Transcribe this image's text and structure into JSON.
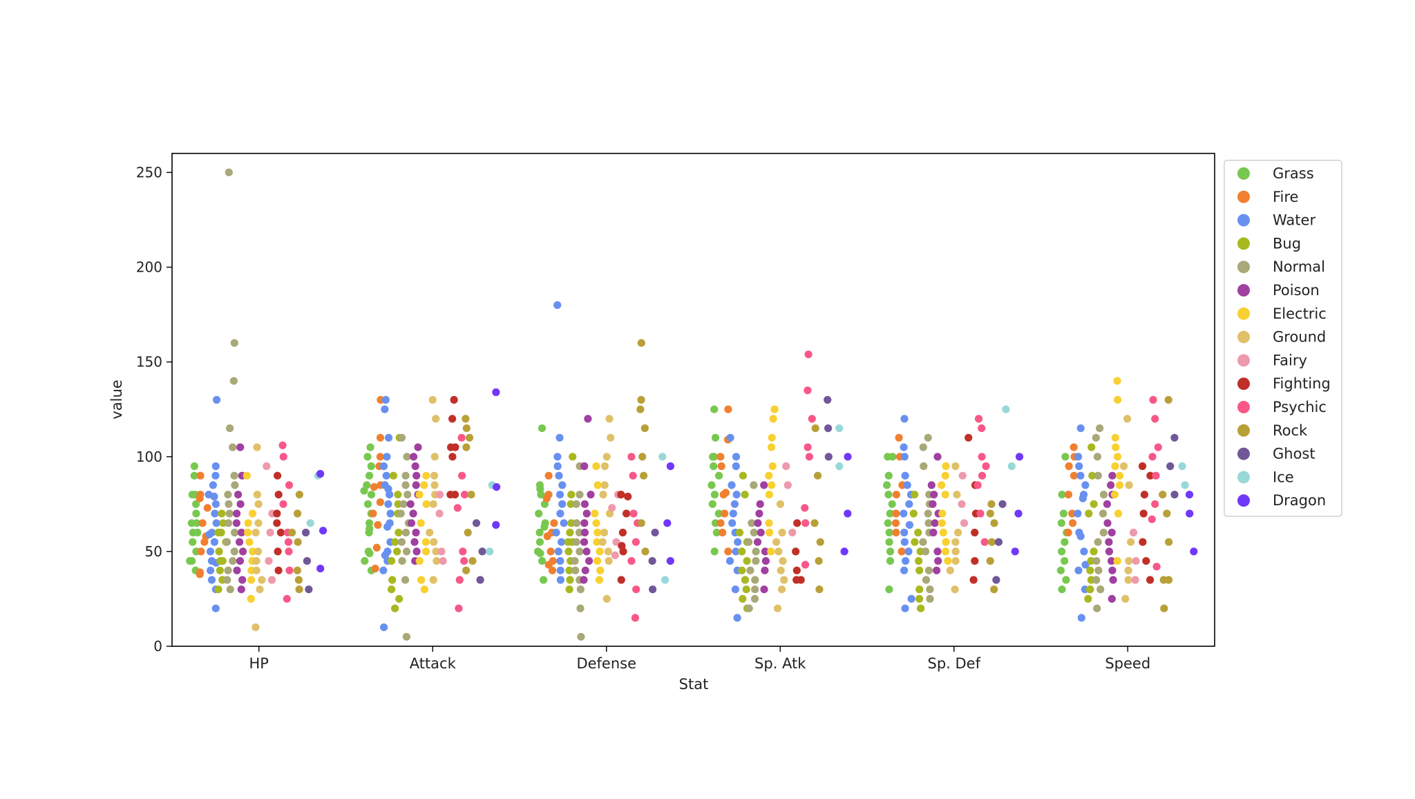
{
  "chart_data": {
    "type": "scatter",
    "subtype": "categorical strip plot with jitter",
    "title": "",
    "xlabel": "Stat",
    "ylabel": "value",
    "categories": [
      "HP",
      "Attack",
      "Defense",
      "Sp. Atk",
      "Sp. Def",
      "Speed"
    ],
    "ylim": [
      0,
      260
    ],
    "yticks": [
      0,
      50,
      100,
      150,
      200,
      250
    ],
    "grid": false,
    "legend_position": "outside-right-top",
    "series": [
      {
        "name": "Grass",
        "color": "#78c850",
        "values": {
          "HP": [
            45,
            60,
            80,
            65,
            75,
            90,
            55,
            70,
            50,
            95,
            40,
            80,
            65,
            45,
            60
          ],
          "Attack": [
            49,
            62,
            82,
            65,
            100,
            80,
            105,
            45,
            75,
            40,
            90,
            60,
            50,
            70,
            95,
            85
          ],
          "Defense": [
            49,
            63,
            83,
            70,
            85,
            80,
            55,
            65,
            115,
            35,
            75,
            50,
            60,
            45
          ],
          "Sp. Atk": [
            65,
            80,
            100,
            70,
            85,
            125,
            100,
            60,
            90,
            110,
            75,
            50,
            95
          ],
          "Sp. Def": [
            65,
            80,
            100,
            60,
            70,
            85,
            100,
            90,
            75,
            45,
            50,
            55,
            30
          ],
          "Speed": [
            45,
            60,
            80,
            55,
            40,
            70,
            50,
            65,
            30,
            100,
            35
          ]
        }
      },
      {
        "name": "Fire",
        "color": "#f08030",
        "values": {
          "HP": [
            39,
            58,
            78,
            65,
            90,
            38,
            73,
            50,
            55,
            80
          ],
          "Attack": [
            52,
            64,
            84,
            130,
            100,
            110,
            76,
            85,
            95,
            41,
            70
          ],
          "Defense": [
            43,
            58,
            78,
            60,
            80,
            45,
            50,
            40,
            90,
            65
          ],
          "Sp. Atk": [
            60,
            80,
            109,
            95,
            70,
            100,
            50,
            81,
            125,
            65
          ],
          "Sp. Def": [
            50,
            65,
            85,
            110,
            100,
            80,
            60,
            70
          ],
          "Speed": [
            65,
            80,
            100,
            105,
            90,
            70,
            60,
            95
          ]
        }
      },
      {
        "name": "Water",
        "color": "#6890f0",
        "values": {
          "HP": [
            44,
            59,
            79,
            30,
            80,
            95,
            90,
            130,
            65,
            70,
            60,
            40,
            55,
            20,
            45,
            50,
            35,
            75,
            85
          ],
          "Attack": [
            48,
            63,
            83,
            85,
            75,
            130,
            95,
            125,
            55,
            70,
            45,
            80,
            65,
            10,
            50,
            40,
            90,
            100,
            110
          ],
          "Defense": [
            65,
            80,
            100,
            110,
            180,
            55,
            70,
            35,
            45,
            85,
            90,
            75,
            60,
            50,
            40,
            95
          ],
          "Sp. Atk": [
            50,
            65,
            85,
            60,
            70,
            110,
            100,
            80,
            40,
            15,
            30,
            55,
            45,
            95,
            75
          ],
          "Sp. Def": [
            64,
            80,
            105,
            55,
            40,
            120,
            60,
            70,
            50,
            25,
            20,
            100,
            90,
            75,
            45,
            85
          ],
          "Speed": [
            43,
            58,
            78,
            80,
            90,
            115,
            70,
            60,
            50,
            85,
            40,
            30,
            15,
            100,
            95
          ]
        }
      },
      {
        "name": "Bug",
        "color": "#a8b820",
        "values": {
          "HP": [
            45,
            50,
            60,
            40,
            65,
            35,
            70,
            55,
            30,
            60,
            45
          ],
          "Attack": [
            30,
            45,
            20,
            35,
            90,
            25,
            80,
            70,
            55,
            60,
            110,
            75,
            50
          ],
          "Defense": [
            35,
            55,
            50,
            30,
            40,
            60,
            80,
            75,
            45,
            65,
            100,
            55
          ],
          "Sp. Atk": [
            20,
            25,
            90,
            45,
            55,
            40,
            60,
            50,
            30,
            80,
            35
          ],
          "Sp. Def": [
            20,
            25,
            80,
            55,
            40,
            70,
            50,
            30,
            60,
            45
          ],
          "Speed": [
            45,
            30,
            75,
            35,
            50,
            70,
            90,
            40,
            30,
            25,
            105
          ]
        }
      },
      {
        "name": "Normal",
        "color": "#a8a878",
        "values": {
          "HP": [
            250,
            160,
            140,
            115,
            105,
            90,
            80,
            70,
            60,
            55,
            40,
            30,
            35,
            45,
            50,
            65,
            75,
            85
          ],
          "Attack": [
            5,
            45,
            55,
            60,
            70,
            80,
            90,
            100,
            110,
            75,
            50,
            65,
            35,
            85
          ],
          "Defense": [
            5,
            20,
            30,
            35,
            40,
            45,
            50,
            55,
            60,
            65,
            75,
            80,
            95
          ],
          "Sp. Atk": [
            35,
            40,
            45,
            55,
            60,
            65,
            25,
            85,
            30,
            20,
            50
          ],
          "Sp. Def": [
            35,
            40,
            50,
            60,
            65,
            70,
            75,
            80,
            95,
            110,
            105,
            55,
            30,
            25
          ],
          "Speed": [
            35,
            45,
            55,
            60,
            70,
            80,
            90,
            100,
            110,
            115,
            30,
            20,
            40
          ]
        }
      },
      {
        "name": "Poison",
        "color": "#a040a0",
        "values": {
          "HP": [
            105,
            80,
            70,
            65,
            40,
            60,
            45,
            50,
            35,
            75,
            90,
            55,
            30
          ],
          "Attack": [
            105,
            90,
            80,
            60,
            45,
            50,
            65,
            75,
            85,
            95,
            100,
            55,
            70
          ],
          "Defense": [
            120,
            75,
            95,
            65,
            70,
            50,
            40,
            45,
            60,
            55,
            35,
            80
          ],
          "Sp. Atk": [
            40,
            65,
            85,
            75,
            60,
            50,
            30,
            55,
            45,
            70
          ],
          "Sp. Def": [
            40,
            65,
            85,
            75,
            100,
            50,
            60,
            70,
            45,
            80
          ],
          "Speed": [
            55,
            65,
            75,
            80,
            90,
            85,
            50,
            40,
            25,
            60,
            45,
            35
          ]
        }
      },
      {
        "name": "Electric",
        "color": "#f8d030",
        "values": {
          "HP": [
            35,
            60,
            40,
            65,
            50,
            90,
            70,
            25,
            45,
            55
          ],
          "Attack": [
            55,
            90,
            45,
            35,
            65,
            80,
            85,
            50,
            30,
            75
          ],
          "Defense": [
            40,
            50,
            70,
            85,
            55,
            65,
            60,
            35,
            45,
            95
          ],
          "Sp. Atk": [
            50,
            90,
            95,
            120,
            80,
            65,
            110,
            105,
            125,
            85,
            60
          ],
          "Sp. Def": [
            50,
            90,
            55,
            80,
            65,
            70,
            85,
            60,
            95,
            45
          ],
          "Speed": [
            90,
            100,
            140,
            130,
            110,
            105,
            80,
            70,
            45,
            95,
            85
          ]
        }
      },
      {
        "name": "Ground",
        "color": "#e0c068",
        "values": {
          "HP": [
            50,
            75,
            10,
            35,
            105,
            80,
            60,
            40,
            65,
            45,
            30
          ],
          "Attack": [
            75,
            100,
            80,
            130,
            120,
            90,
            60,
            55,
            85,
            50,
            35,
            45
          ],
          "Defense": [
            85,
            110,
            55,
            80,
            95,
            120,
            70,
            50,
            25,
            60,
            100,
            45
          ],
          "Sp. Atk": [
            20,
            45,
            30,
            40,
            35,
            50,
            55,
            60,
            75
          ],
          "Sp. Def": [
            30,
            45,
            55,
            40,
            50,
            60,
            80,
            95
          ],
          "Speed": [
            40,
            25,
            45,
            35,
            120,
            95,
            55,
            85
          ]
        }
      },
      {
        "name": "Fairy",
        "color": "#ee99ac",
        "values": {
          "HP": [
            70,
            95,
            60,
            35,
            45
          ],
          "Attack": [
            45,
            70,
            80,
            50
          ],
          "Defense": [
            48,
            73,
            55,
            80
          ],
          "Sp. Atk": [
            60,
            95,
            85
          ],
          "Sp. Def": [
            65,
            90,
            75
          ],
          "Speed": [
            35,
            60,
            45
          ]
        }
      },
      {
        "name": "Fighting",
        "color": "#c03028",
        "values": {
          "HP": [
            70,
            80,
            90,
            50,
            65,
            40,
            60
          ],
          "Attack": [
            80,
            105,
            130,
            105,
            100,
            80,
            120
          ],
          "Defense": [
            35,
            50,
            80,
            79,
            53,
            60,
            70
          ],
          "Sp. Atk": [
            35,
            40,
            50,
            35,
            65
          ],
          "Sp. Def": [
            35,
            60,
            110,
            85,
            70,
            45
          ],
          "Speed": [
            35,
            55,
            70,
            95,
            90,
            45,
            80
          ]
        }
      },
      {
        "name": "Psychic",
        "color": "#f85888",
        "values": {
          "HP": [
            25,
            40,
            55,
            85,
            106,
            100,
            60,
            50,
            75
          ],
          "Attack": [
            20,
            35,
            50,
            90,
            110,
            73,
            45,
            80
          ],
          "Defense": [
            15,
            30,
            45,
            65,
            100,
            90,
            55,
            70
          ],
          "Sp. Atk": [
            105,
            120,
            135,
            154,
            100,
            73,
            43,
            65
          ],
          "Sp. Def": [
            55,
            70,
            95,
            90,
            120,
            115,
            100,
            85
          ],
          "Speed": [
            90,
            105,
            120,
            130,
            67,
            42,
            75,
            100
          ]
        }
      },
      {
        "name": "Rock",
        "color": "#b8a038",
        "values": {
          "HP": [
            35,
            60,
            80,
            55,
            30,
            40,
            70
          ],
          "Attack": [
            45,
            60,
            80,
            110,
            120,
            115,
            105,
            40
          ],
          "Defense": [
            90,
            125,
            130,
            100,
            115,
            160,
            65,
            50
          ],
          "Sp. Atk": [
            30,
            45,
            55,
            65,
            115,
            90
          ],
          "Sp. Def": [
            45,
            55,
            70,
            75,
            65,
            30
          ],
          "Speed": [
            20,
            35,
            55,
            70,
            130,
            80,
            35
          ]
        }
      },
      {
        "name": "Ghost",
        "color": "#705898",
        "values": {
          "HP": [
            30,
            45,
            60
          ],
          "Attack": [
            35,
            50,
            65
          ],
          "Defense": [
            30,
            45,
            60
          ],
          "Sp. Atk": [
            100,
            115,
            130
          ],
          "Sp. Def": [
            35,
            55,
            75
          ],
          "Speed": [
            80,
            95,
            110
          ]
        }
      },
      {
        "name": "Ice",
        "color": "#98d8d8",
        "values": {
          "HP": [
            90,
            65
          ],
          "Attack": [
            85,
            50
          ],
          "Defense": [
            100,
            35
          ],
          "Sp. Atk": [
            115,
            95
          ],
          "Sp. Def": [
            125,
            95
          ],
          "Speed": [
            95,
            85
          ]
        }
      },
      {
        "name": "Dragon",
        "color": "#7038f8",
        "values": {
          "HP": [
            41,
            61,
            91
          ],
          "Attack": [
            64,
            84,
            134
          ],
          "Defense": [
            45,
            65,
            95
          ],
          "Sp. Atk": [
            50,
            70,
            100
          ],
          "Sp. Def": [
            50,
            70,
            100
          ],
          "Speed": [
            50,
            70,
            80
          ]
        }
      }
    ]
  }
}
